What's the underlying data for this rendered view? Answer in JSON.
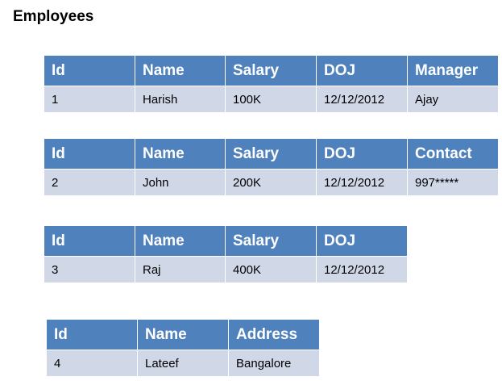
{
  "page": {
    "title": "Employees"
  },
  "colors": {
    "header_fill": "#4f81bd",
    "cell_fill": "#d0d8e8",
    "header_text": "#ffffff"
  },
  "tables": [
    {
      "headers": [
        "Id",
        "Name",
        "Salary",
        "DOJ",
        "Manager"
      ],
      "row": [
        "1",
        "Harish",
        "100K",
        "12/12/2012",
        "Ajay"
      ]
    },
    {
      "headers": [
        "Id",
        "Name",
        "Salary",
        "DOJ",
        "Contact"
      ],
      "row": [
        "2",
        "John",
        "200K",
        "12/12/2012",
        "997*****"
      ]
    },
    {
      "headers": [
        "Id",
        "Name",
        "Salary",
        "DOJ"
      ],
      "row": [
        "3",
        "Raj",
        "400K",
        "12/12/2012"
      ]
    },
    {
      "headers": [
        "Id",
        "Name",
        "Address"
      ],
      "row": [
        "4",
        "Lateef",
        "Bangalore"
      ]
    }
  ]
}
